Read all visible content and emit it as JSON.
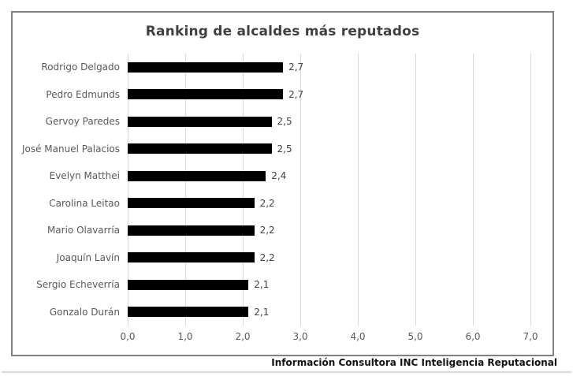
{
  "chart_data": {
    "type": "bar",
    "orientation": "horizontal",
    "title": "Ranking de alcaldes más reputados",
    "categories": [
      "Rodrigo Delgado",
      "Pedro Edmunds",
      "Gervoy Paredes",
      "José Manuel Palacios",
      "Evelyn Matthei",
      "Carolina Leitao",
      "Mario Olavarría",
      "Joaquín Lavín",
      "Sergio Echeverría",
      "Gonzalo Durán"
    ],
    "values": [
      2.7,
      2.7,
      2.5,
      2.5,
      2.4,
      2.2,
      2.2,
      2.2,
      2.1,
      2.1
    ],
    "value_labels": [
      "2,7",
      "2,7",
      "2,5",
      "2,5",
      "2,4",
      "2,2",
      "2,2",
      "2,2",
      "2,1",
      "2,1"
    ],
    "x_ticks": [
      "0,0",
      "1,0",
      "2,0",
      "3,0",
      "4,0",
      "5,0",
      "6,0",
      "7,0"
    ],
    "x_tick_values": [
      0,
      1,
      2,
      3,
      4,
      5,
      6,
      7
    ],
    "xlim": [
      0,
      7
    ],
    "xlabel": "",
    "ylabel": "",
    "grid": "vertical-on",
    "legend": "none"
  },
  "colors": {
    "bar": "#000000",
    "title": "#404040",
    "category_label": "#595959",
    "value_label": "#404040",
    "gridline": "#d9d9d9",
    "chart_border": "#808080",
    "footer_text": "#111111",
    "footer_rule": "#d9d9d9",
    "background": "#ffffff"
  },
  "footer": {
    "text": "Información Consultora INC Inteligencia Reputacional"
  }
}
